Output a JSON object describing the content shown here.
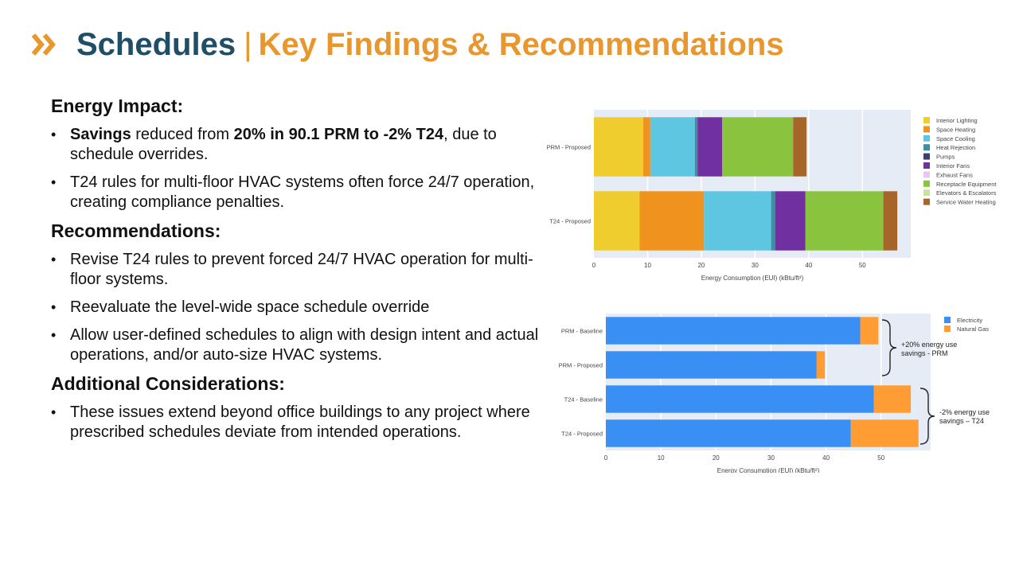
{
  "header": {
    "title_main": "Schedules",
    "title_separator": "|",
    "title_sub": "Key Findings & Recommendations",
    "accent_color": "#e8962e",
    "title_color": "#1f4e66"
  },
  "sections": {
    "energy_impact": {
      "heading": "Energy Impact:",
      "bullet1": {
        "b1": "Savings",
        "t1": " reduced from ",
        "b2": "20% in 90.1 PRM to -2% T24",
        "t2": ", due to schedule overrides."
      },
      "bullet2": "T24 rules for multi-floor HVAC systems often force 24/7 operation, creating compliance penalties."
    },
    "recommendations": {
      "heading": "Recommendations:",
      "bullets": [
        "Revise T24 rules to prevent forced 24/7 HVAC operation for multi-floor systems.",
        "Reevaluate the level-wide space schedule override",
        "Allow user-defined schedules to align with design intent and actual operations, and/or auto-size HVAC systems."
      ]
    },
    "additional": {
      "heading": "Additional Considerations:",
      "bullets": [
        "These issues extend beyond office buildings to any project where prescribed schedules deviate from intended operations."
      ]
    }
  },
  "chart_data": [
    {
      "type": "bar",
      "orientation": "horizontal",
      "stacked": true,
      "categories": [
        "PRM - Proposed",
        "T24 - Proposed"
      ],
      "series": [
        {
          "name": "Interior Lighting",
          "color": "#f0cd2e",
          "values": [
            9.2,
            8.5
          ]
        },
        {
          "name": "Space Heating",
          "color": "#f0921e",
          "values": [
            1.3,
            12.0
          ]
        },
        {
          "name": "Space Cooling",
          "color": "#5ec6e0",
          "values": [
            8.3,
            12.5
          ]
        },
        {
          "name": "Heat Rejection",
          "color": "#3a8fa0",
          "values": [
            0.5,
            0.8
          ]
        },
        {
          "name": "Pumps",
          "color": "#3c3f6e",
          "values": [
            0,
            0
          ]
        },
        {
          "name": "Interior Fans",
          "color": "#7030a0",
          "values": [
            4.6,
            5.6
          ]
        },
        {
          "name": "Exhaust Fans",
          "color": "#e4c8f0",
          "values": [
            0,
            0
          ]
        },
        {
          "name": "Receptacle Equipment",
          "color": "#8ac43f",
          "values": [
            13.2,
            14.5
          ]
        },
        {
          "name": "Elevators & Escalators",
          "color": "#c9e3a0",
          "values": [
            0,
            0
          ]
        },
        {
          "name": "Service Water Heating",
          "color": "#a6662a",
          "values": [
            2.5,
            2.6
          ]
        }
      ],
      "xlabel": "Energy Consumption (EUI) (kBtu/ft²)",
      "xlim": [
        0,
        59
      ],
      "xticks": [
        "0",
        "10",
        "20",
        "30",
        "40",
        "50"
      ],
      "legend": "right"
    },
    {
      "type": "bar",
      "orientation": "horizontal",
      "stacked": true,
      "categories": [
        "PRM - Baseline",
        "PRM - Proposed",
        "T24 - Baseline",
        "T24 - Proposed"
      ],
      "series": [
        {
          "name": "Electricity",
          "color": "#3a8ff5",
          "values": [
            46.2,
            38.3,
            48.7,
            44.5
          ]
        },
        {
          "name": "Natural Gas",
          "color": "#ff9c33",
          "values": [
            3.3,
            1.5,
            6.7,
            12.3
          ]
        }
      ],
      "xlabel": "Energy Consumption (EUI) (kBtu/ft²)",
      "xlim": [
        0,
        59
      ],
      "xticks": [
        "0",
        "10",
        "20",
        "30",
        "40",
        "50"
      ],
      "legend": "top-right",
      "annotations": [
        {
          "lines": [
            "+20% energy use",
            "savings - PRM"
          ]
        },
        {
          "lines": [
            "-2% energy use",
            "savings – T24"
          ]
        }
      ]
    }
  ]
}
